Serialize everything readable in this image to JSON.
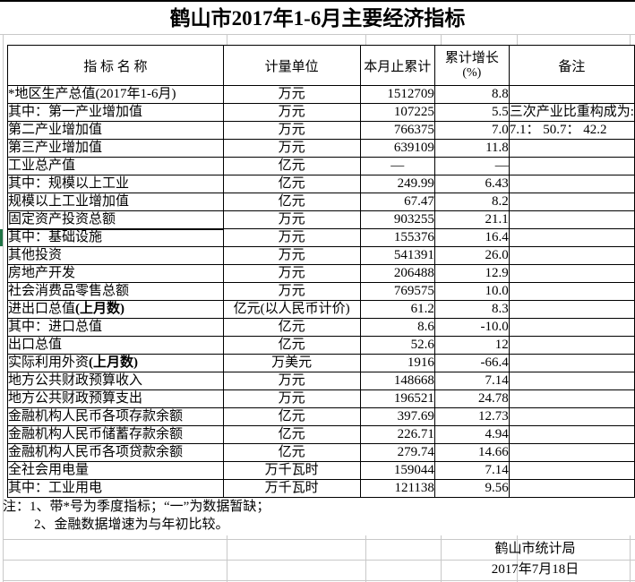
{
  "title": "鹤山市2017年1-6月主要经济指标",
  "colors": {
    "border": "#000000",
    "gridline": "#c8c8c8",
    "selection": "#1f7345",
    "background": "#ffffff",
    "text": "#000000"
  },
  "table": {
    "headers": {
      "indicator": "指  标  名  称",
      "unit": "计量单位",
      "cumulative": "本月止累计",
      "growth_line1": "累计增长",
      "growth_line2": "(%)",
      "remark": "备注"
    },
    "rows": [
      {
        "name": "*地区生产总值(2017年1-6月)",
        "bold": "",
        "unit": "万元",
        "current": "1512709",
        "growth": "8.8",
        "indent": 0,
        "cur": "gap",
        "gro": "gap",
        "remark": "",
        "selected": false
      },
      {
        "name": "其中：第一产业增加值",
        "bold": "",
        "unit": "万元",
        "current": "107225",
        "growth": "5.5",
        "indent": 2,
        "cur": "gap",
        "gro": "gap",
        "remark": "三次产业比重构成为:",
        "selected": false
      },
      {
        "name": "第二产业增加值",
        "bold": "",
        "unit": "万元",
        "current": "766375",
        "growth": "7.0",
        "indent": 4,
        "cur": "gap",
        "gro": "gap",
        "remark": "7.1： 50.7： 42.2",
        "selected": false
      },
      {
        "name": "第三产业增加值",
        "bold": "",
        "unit": "万元",
        "current": "639109",
        "growth": "11.8",
        "indent": 4,
        "cur": "gap",
        "gro": "gap",
        "remark": "",
        "selected": false
      },
      {
        "name": "工业总产值",
        "bold": "",
        "unit": "亿元",
        "current": "—",
        "growth": "—",
        "indent": 0,
        "cur": "center",
        "gro": "gap",
        "remark": "",
        "selected": false
      },
      {
        "name": "其中：规模以上工业",
        "bold": "",
        "unit": "亿元",
        "current": "249.99",
        "growth": "6.43",
        "indent": 2,
        "cur": "gap",
        "gro": "gap",
        "remark": "",
        "selected": false
      },
      {
        "name": "规模以上工业增加值",
        "bold": "",
        "unit": "亿元",
        "current": "67.47",
        "growth": "8.2",
        "indent": 0,
        "cur": "gap",
        "gro": "gap",
        "remark": "",
        "selected": false
      },
      {
        "name": "固定资产投资总额",
        "bold": "",
        "unit": "万元",
        "current": "903255",
        "growth": "21.1",
        "indent": 0,
        "cur": "gap",
        "gro": "gap",
        "remark": "",
        "selected": false
      },
      {
        "name": "其中：基础设施",
        "bold": "",
        "unit": "万元",
        "current": "155376",
        "growth": "16.4",
        "indent": 2,
        "cur": "gap",
        "gro": "gap",
        "remark": "",
        "selected": true
      },
      {
        "name": "其他投资",
        "bold": "",
        "unit": "万元",
        "current": "541391",
        "growth": "26.0",
        "indent": 4,
        "cur": "gap",
        "gro": "gap",
        "remark": "",
        "selected": false
      },
      {
        "name": "房地产开发",
        "bold": "",
        "unit": "万元",
        "current": "206488",
        "growth": "12.9",
        "indent": 4,
        "cur": "gap",
        "gro": "gap",
        "remark": "",
        "selected": false
      },
      {
        "name": "社会消费品零售总额",
        "bold": "",
        "unit": "万元",
        "current": "769575",
        "growth": "10.0",
        "indent": 0,
        "cur": "gap",
        "gro": "gap",
        "remark": "",
        "selected": false
      },
      {
        "name": "进出口总值",
        "bold": "(上月数)",
        "unit": "亿元(以人民币计价)",
        "current": "61.2",
        "growth": "8.3",
        "indent": 0,
        "cur": "flush",
        "gro": "flush",
        "remark": "",
        "selected": false
      },
      {
        "name": "其中：进口总值",
        "bold": "",
        "unit": "亿元",
        "current": "8.6",
        "growth": "-10.0",
        "indent": 1,
        "cur": "flush",
        "gro": "flush",
        "remark": "",
        "selected": false
      },
      {
        "name": "出口总值",
        "bold": "",
        "unit": "亿元",
        "current": "52.6",
        "growth": "12",
        "indent": 3,
        "cur": "flush",
        "gro": "flush",
        "remark": "",
        "selected": false
      },
      {
        "name": "实际利用外资",
        "bold": "(上月数)",
        "unit": "万美元",
        "current": "1916",
        "growth": "-66.4",
        "indent": 0,
        "cur": "flush",
        "gro": "flush",
        "remark": "",
        "selected": false
      },
      {
        "name": "地方公共财政预算收入",
        "bold": "",
        "unit": "万元",
        "current": "148668",
        "growth": "7.14",
        "indent": 0,
        "cur": "flush",
        "gro": "gap",
        "remark": "",
        "selected": false
      },
      {
        "name": "地方公共财政预算支出",
        "bold": "",
        "unit": "万元",
        "current": "196521",
        "growth": "24.78",
        "indent": 0,
        "cur": "flush",
        "gro": "gap",
        "remark": "",
        "selected": false
      },
      {
        "name": "金融机构人民币各项存款余额",
        "bold": "",
        "unit": "亿元",
        "current": "397.69",
        "growth": "12.73",
        "indent": 0,
        "cur": "gap",
        "gro": "gap",
        "remark": "",
        "selected": false
      },
      {
        "name": "金融机构人民币储蓄存款余额",
        "bold": "",
        "unit": "亿元",
        "current": "226.71",
        "growth": "4.94",
        "indent": 0,
        "cur": "gap",
        "gro": "gap",
        "remark": "",
        "selected": false
      },
      {
        "name": "金融机构人民币各项贷款余额",
        "bold": "",
        "unit": "亿元",
        "current": "279.74",
        "growth": "14.66",
        "indent": 0,
        "cur": "gap",
        "gro": "gap",
        "remark": "",
        "selected": false
      },
      {
        "name": "全社会用电量",
        "bold": "",
        "unit": "万千瓦时",
        "current": "159044",
        "growth": "7.14",
        "indent": 0,
        "cur": "gap",
        "gro": "gap",
        "remark": "",
        "selected": false
      },
      {
        "name": "其中：工业用电",
        "bold": "",
        "unit": "万千瓦时",
        "current": "121138",
        "growth": "9.56",
        "indent": 2,
        "cur": "gap",
        "gro": "gap",
        "remark": "",
        "selected": false
      }
    ]
  },
  "notes": {
    "line1": "注：1、带*号为季度指标；“一”为数据暂缺；",
    "line2": "2、金融数据增速为与年初比较。"
  },
  "footer": {
    "org": "鹤山市统计局",
    "date": "2017年7月18日"
  }
}
